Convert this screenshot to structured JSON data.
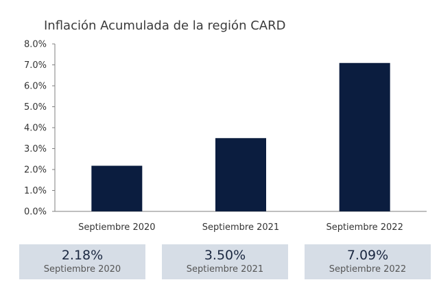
{
  "chart_data": {
    "type": "bar",
    "title": "Inflación Acumulada de la región CARD",
    "categories": [
      "Septiembre 2020",
      "Septiembre 2021",
      "Septiembre 2022"
    ],
    "values": [
      2.18,
      3.5,
      7.09
    ],
    "yticks": [
      "0.0%",
      "1.0%",
      "2.0%",
      "3.0%",
      "4.0%",
      "5.0%",
      "6.0%",
      "7.0%",
      "8.0%"
    ],
    "ylim": [
      0,
      8
    ],
    "grid": false,
    "bar_color": "#0b1d3f"
  },
  "summary": [
    {
      "value": "2.18%",
      "label": "Septiembre 2020"
    },
    {
      "value": "3.50%",
      "label": "Septiembre 2021"
    },
    {
      "value": "7.09%",
      "label": "Septiembre 2022"
    }
  ]
}
